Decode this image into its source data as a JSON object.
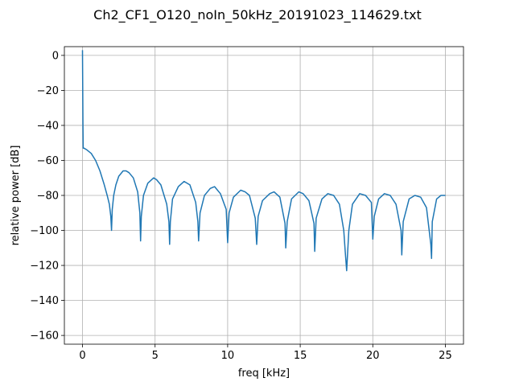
{
  "chart_data": {
    "type": "line",
    "title": "Ch2_CF1_O120_noIn_50kHz_20191023_114629.txt",
    "xlabel": "freq [kHz]",
    "ylabel": "relative power [dB]",
    "xlim": [
      -1.25,
      26.25
    ],
    "ylim": [
      -165,
      5
    ],
    "xticks": [
      0,
      5,
      10,
      15,
      20,
      25
    ],
    "xtick_labels": [
      "0",
      "5",
      "10",
      "15",
      "20",
      "25"
    ],
    "yticks": [
      0,
      -20,
      -40,
      -60,
      -80,
      -100,
      -120,
      -140,
      -160
    ],
    "ytick_labels": [
      "0",
      "−20",
      "−40",
      "−60",
      "−80",
      "−100",
      "−120",
      "−140",
      "−160"
    ],
    "grid": true,
    "series": [
      {
        "color": "#1f77b4",
        "x": [
          0,
          0.03,
          0.05,
          0.1,
          0.3,
          0.6,
          0.9,
          1.2,
          1.5,
          1.7,
          1.85,
          1.95,
          2.0,
          2.05,
          2.15,
          2.3,
          2.5,
          2.8,
          3.0,
          3.2,
          3.5,
          3.8,
          3.95,
          4.0,
          4.05,
          4.2,
          4.5,
          4.9,
          5.1,
          5.4,
          5.8,
          5.95,
          6.0,
          6.05,
          6.2,
          6.6,
          7.0,
          7.4,
          7.8,
          7.95,
          8.0,
          8.1,
          8.4,
          8.8,
          9.1,
          9.5,
          9.9,
          10.0,
          10.1,
          10.4,
          10.9,
          11.2,
          11.5,
          11.9,
          12.0,
          12.1,
          12.4,
          12.9,
          13.2,
          13.6,
          13.95,
          14.0,
          14.1,
          14.4,
          14.9,
          15.2,
          15.6,
          15.95,
          16.0,
          16.1,
          16.5,
          16.9,
          17.3,
          17.7,
          18.0,
          18.1,
          18.2,
          18.35,
          18.6,
          19.1,
          19.5,
          19.9,
          20.0,
          20.1,
          20.4,
          20.8,
          21.2,
          21.6,
          21.95,
          22.0,
          22.1,
          22.5,
          22.9,
          23.3,
          23.7,
          24.0,
          24.05,
          24.1,
          24.4,
          24.7,
          25.0
        ],
        "y": [
          3,
          -40,
          -53,
          -53,
          -54,
          -56,
          -60,
          -66,
          -74,
          -80,
          -85,
          -92,
          -100,
          -88,
          -80,
          -74,
          -69,
          -66,
          -66,
          -67,
          -70,
          -78,
          -90,
          -106,
          -92,
          -80,
          -73,
          -70,
          -71,
          -74,
          -85,
          -95,
          -108,
          -95,
          -82,
          -75,
          -72,
          -74,
          -84,
          -95,
          -106,
          -90,
          -80,
          -76,
          -75,
          -79,
          -88,
          -107,
          -90,
          -81,
          -77,
          -78,
          -80,
          -93,
          -108,
          -92,
          -83,
          -79,
          -78,
          -81,
          -96,
          -110,
          -95,
          -82,
          -78,
          -79,
          -83,
          -96,
          -112,
          -93,
          -82,
          -79,
          -80,
          -85,
          -100,
          -112,
          -123,
          -100,
          -85,
          -79,
          -80,
          -84,
          -105,
          -92,
          -82,
          -79,
          -80,
          -85,
          -100,
          -114,
          -95,
          -82,
          -80,
          -81,
          -87,
          -108,
          -116,
          -95,
          -82,
          -80,
          -80
        ]
      }
    ]
  }
}
